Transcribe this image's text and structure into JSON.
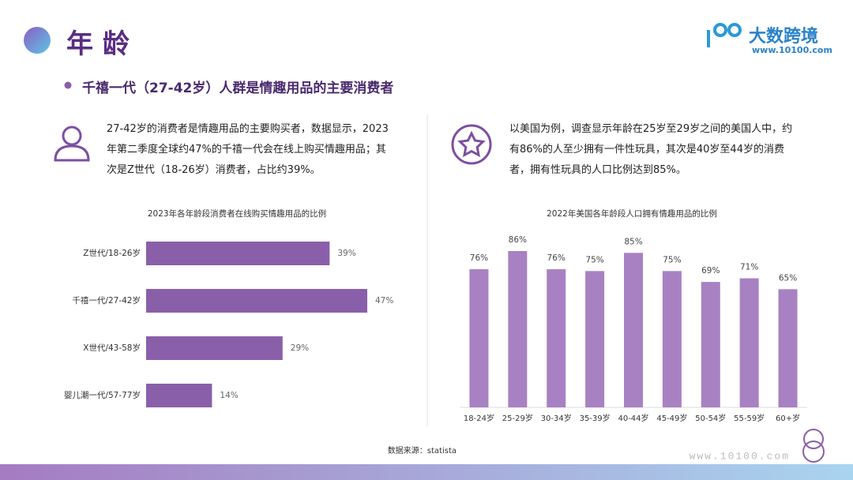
{
  "header": {
    "title": "年 龄",
    "logo": "大数跨境",
    "logo_url": "www.10100.com"
  },
  "bullet": "千禧一代（27-42岁）人群是情趣用品的主要消费者",
  "paragraphs": [
    "27-42岁的消费者是情趣用品的主要购买者，数据显示，2023年第二季度全球约47%的千禧一代会在线上购买情趣用品；其次是Z世代（18-26岁）消费者，占比约39%。",
    "以美国为例，调查显示年龄在25岁至29岁之间的美国人中，约有86%的人至少拥有一件性玩具，其次是40岁至44岁的消费者，拥有性玩具的人口比例达到85%。"
  ],
  "source": "数据来源：statista",
  "footer_url": "www.10100.com",
  "chart_data": [
    {
      "type": "bar",
      "orientation": "horizontal",
      "title": "2023年各年龄段消费者在线购买情趣用品的比例",
      "categories": [
        "Z世代/18-26岁",
        "千禧一代/27-42岁",
        "X世代/43-58岁",
        "婴儿潮一代/57-77岁"
      ],
      "values": [
        39,
        47,
        29,
        14
      ],
      "value_labels": [
        "39%",
        "47%",
        "29%",
        "14%"
      ],
      "color": "#8a5fa9"
    },
    {
      "type": "bar",
      "orientation": "vertical",
      "title": "2022年美国各年龄段人口拥有情趣用品的比例",
      "categories": [
        "18-24岁",
        "25-29岁",
        "30-34岁",
        "35-39岁",
        "40-44岁",
        "45-49岁",
        "50-54岁",
        "55-59岁",
        "60+岁"
      ],
      "values": [
        76,
        86,
        76,
        75,
        85,
        75,
        69,
        71,
        65
      ],
      "value_labels": [
        "76%",
        "86%",
        "76%",
        "75%",
        "85%",
        "75%",
        "69%",
        "71%",
        "65%"
      ],
      "color": "#a881c2"
    }
  ]
}
